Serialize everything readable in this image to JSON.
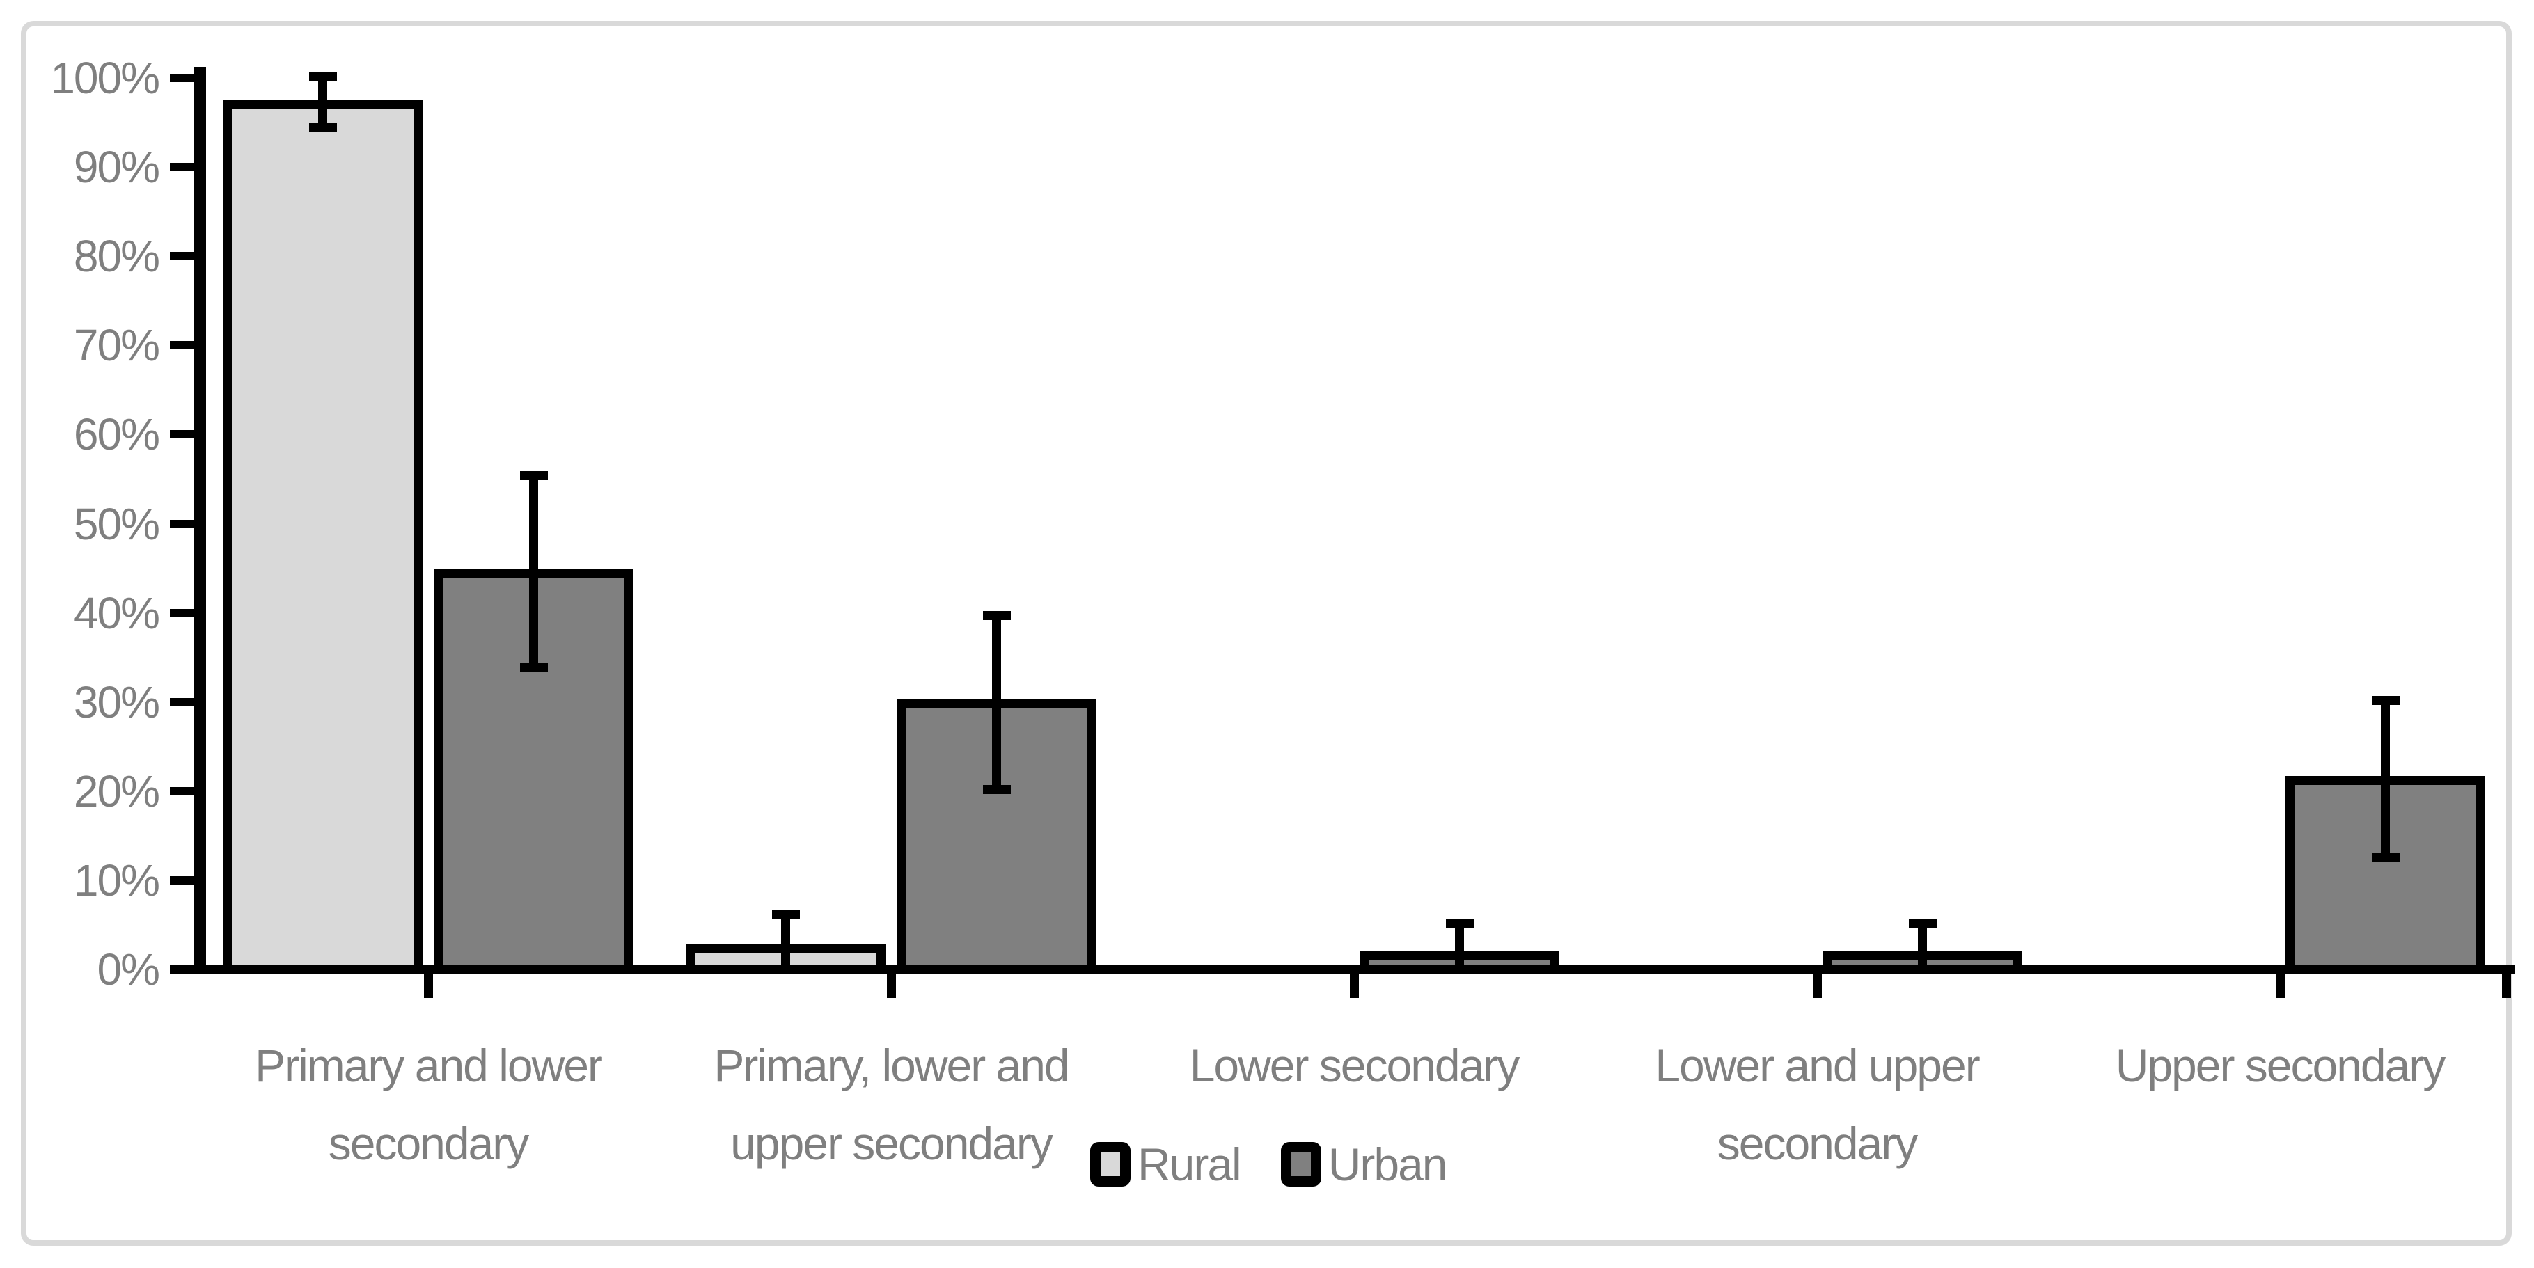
{
  "chart_data": {
    "type": "bar",
    "title": "",
    "categories": [
      {
        "label": "Primary and lower secondary",
        "lines": [
          "Primary and lower",
          "secondary"
        ]
      },
      {
        "label": "Primary, lower and upper secondary",
        "lines": [
          "Primary, lower and",
          "upper secondary"
        ]
      },
      {
        "label": "Lower secondary",
        "lines": [
          "Lower secondary"
        ]
      },
      {
        "label": "Lower and upper secondary",
        "lines": [
          "Lower and upper",
          "secondary"
        ]
      },
      {
        "label": "Upper secondary",
        "lines": [
          "Upper secondary"
        ]
      }
    ],
    "series": [
      {
        "name": "Rural",
        "fill": "#d9d9d9",
        "values": [
          97.5,
          2.9,
          0,
          0,
          0
        ],
        "error_low": [
          94.4,
          0,
          null,
          null,
          null
        ],
        "error_high": [
          100.2,
          6.2,
          null,
          null,
          null
        ]
      },
      {
        "name": "Urban",
        "fill": "#808080",
        "values": [
          45.0,
          30.3,
          2.1,
          2.1,
          21.7
        ],
        "error_low": [
          33.9,
          20.2,
          0,
          0,
          12.6
        ],
        "error_high": [
          55.4,
          39.7,
          5.2,
          5.2,
          30.2
        ]
      }
    ],
    "y_axis": {
      "min": 0,
      "max": 100,
      "step": 10,
      "tick_labels": [
        "0%",
        "10%",
        "20%",
        "30%",
        "40%",
        "50%",
        "60%",
        "70%",
        "80%",
        "90%",
        "100%"
      ]
    },
    "legend": {
      "position": "bottom",
      "items": [
        "Rural",
        "Urban"
      ]
    },
    "grid": false,
    "error_bars": true,
    "colors": {
      "axis": "#000000",
      "error_bar": "#000000",
      "text": "#7f7f7f",
      "frame_border": "#d9d9d9",
      "background": "#ffffff",
      "rural_fill": "#d9d9d9",
      "urban_fill": "#808080"
    }
  }
}
